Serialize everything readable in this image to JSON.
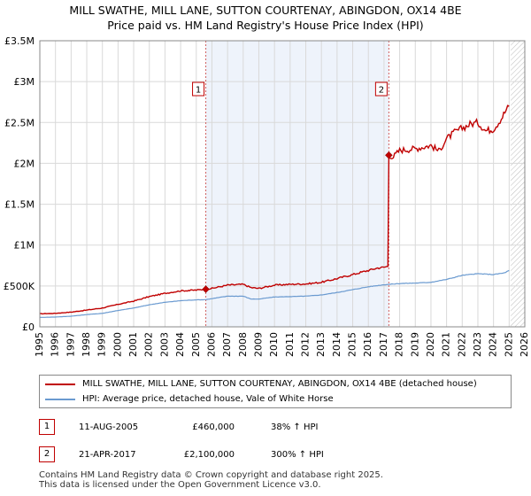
{
  "title_line1": "MILL SWATHE, MILL LANE, SUTTON COURTENAY, ABINGDON, OX14 4BE",
  "title_line2": "Price paid vs. HM Land Registry's House Price Index (HPI)",
  "colors": {
    "red": "#c00000",
    "blue": "#6a9ad0",
    "grid": "#d9d9d9",
    "plot_bg": "#ffffff",
    "shade": "#eef3fb"
  },
  "chart_data": {
    "type": "line",
    "xlim": [
      1995,
      2026
    ],
    "ylim": [
      0,
      3500000
    ],
    "x_ticks": [
      "1995",
      "1996",
      "1997",
      "1998",
      "1999",
      "2000",
      "2001",
      "2002",
      "2003",
      "2004",
      "2005",
      "2006",
      "2007",
      "2008",
      "2009",
      "2010",
      "2011",
      "2012",
      "2013",
      "2014",
      "2015",
      "2016",
      "2017",
      "2018",
      "2019",
      "2020",
      "2021",
      "2022",
      "2023",
      "2024",
      "2025",
      "2026"
    ],
    "y_ticks": [
      {
        "value": 0,
        "label": "£0"
      },
      {
        "value": 500000,
        "label": "£500K"
      },
      {
        "value": 1000000,
        "label": "£1M"
      },
      {
        "value": 1500000,
        "label": "£1.5M"
      },
      {
        "value": 2000000,
        "label": "£2M"
      },
      {
        "value": 2500000,
        "label": "£2.5M"
      },
      {
        "value": 3000000,
        "label": "£3M"
      },
      {
        "value": 3500000,
        "label": "£3.5M"
      }
    ],
    "hatch_from_year": 2025.1,
    "series": [
      {
        "name": "MILL SWATHE, MILL LANE, SUTTON COURTENAY, ABINGDON, OX14 4BE (detached house)",
        "color": "#c00000",
        "points": [
          [
            1995.0,
            160000
          ],
          [
            1996.0,
            165000
          ],
          [
            1997.0,
            180000
          ],
          [
            1998.0,
            205000
          ],
          [
            1999.0,
            230000
          ],
          [
            2000.0,
            275000
          ],
          [
            2001.0,
            315000
          ],
          [
            2002.0,
            370000
          ],
          [
            2003.0,
            410000
          ],
          [
            2004.0,
            440000
          ],
          [
            2005.0,
            450000
          ],
          [
            2005.6,
            460000
          ],
          [
            2006.0,
            470000
          ],
          [
            2007.0,
            510000
          ],
          [
            2008.0,
            520000
          ],
          [
            2008.5,
            480000
          ],
          [
            2009.0,
            470000
          ],
          [
            2010.0,
            510000
          ],
          [
            2011.0,
            520000
          ],
          [
            2012.0,
            525000
          ],
          [
            2013.0,
            545000
          ],
          [
            2014.0,
            590000
          ],
          [
            2015.0,
            640000
          ],
          [
            2016.0,
            690000
          ],
          [
            2016.6,
            720000
          ],
          [
            2017.0,
            730000
          ],
          [
            2017.25,
            740000
          ],
          [
            2017.31,
            2100000
          ],
          [
            2017.6,
            2080000
          ],
          [
            2018.0,
            2160000
          ],
          [
            2019.0,
            2180000
          ],
          [
            2020.0,
            2220000
          ],
          [
            2020.5,
            2150000
          ],
          [
            2021.0,
            2300000
          ],
          [
            2021.5,
            2380000
          ],
          [
            2022.0,
            2430000
          ],
          [
            2022.5,
            2480000
          ],
          [
            2023.0,
            2500000
          ],
          [
            2023.5,
            2400000
          ],
          [
            2024.0,
            2420000
          ],
          [
            2024.5,
            2550000
          ],
          [
            2024.8,
            2650000
          ],
          [
            2025.0,
            2700000
          ]
        ]
      },
      {
        "name": "HPI: Average price, detached house, Vale of White Horse",
        "color": "#6a9ad0",
        "points": [
          [
            1995.0,
            115000
          ],
          [
            1996.0,
            120000
          ],
          [
            1997.0,
            130000
          ],
          [
            1998.0,
            150000
          ],
          [
            1999.0,
            165000
          ],
          [
            2000.0,
            200000
          ],
          [
            2001.0,
            230000
          ],
          [
            2002.0,
            270000
          ],
          [
            2003.0,
            300000
          ],
          [
            2004.0,
            320000
          ],
          [
            2005.0,
            330000
          ],
          [
            2005.6,
            333000
          ],
          [
            2006.0,
            345000
          ],
          [
            2007.0,
            375000
          ],
          [
            2008.0,
            375000
          ],
          [
            2008.5,
            340000
          ],
          [
            2009.0,
            340000
          ],
          [
            2010.0,
            365000
          ],
          [
            2011.0,
            370000
          ],
          [
            2012.0,
            375000
          ],
          [
            2013.0,
            390000
          ],
          [
            2014.0,
            420000
          ],
          [
            2015.0,
            455000
          ],
          [
            2016.0,
            490000
          ],
          [
            2017.0,
            515000
          ],
          [
            2018.0,
            530000
          ],
          [
            2019.0,
            535000
          ],
          [
            2020.0,
            545000
          ],
          [
            2021.0,
            580000
          ],
          [
            2022.0,
            630000
          ],
          [
            2023.0,
            650000
          ],
          [
            2024.0,
            640000
          ],
          [
            2024.7,
            660000
          ],
          [
            2025.0,
            690000
          ]
        ]
      }
    ],
    "transactions": [
      {
        "label": "1",
        "year": 2005.61,
        "value": 460000,
        "date": "11-AUG-2005",
        "price": "£460,000",
        "hpi": "38% ↑ HPI"
      },
      {
        "label": "2",
        "year": 2017.31,
        "value": 2100000,
        "date": "21-APR-2017",
        "price": "£2,100,000",
        "hpi": "300% ↑ HPI"
      }
    ]
  },
  "legend": {
    "red_label": "MILL SWATHE, MILL LANE, SUTTON COURTENAY, ABINGDON, OX14 4BE (detached house)",
    "blue_label": "HPI: Average price, detached house, Vale of White Horse"
  },
  "footer_line1": "Contains HM Land Registry data © Crown copyright and database right 2025.",
  "footer_line2": "This data is licensed under the Open Government Licence v3.0."
}
